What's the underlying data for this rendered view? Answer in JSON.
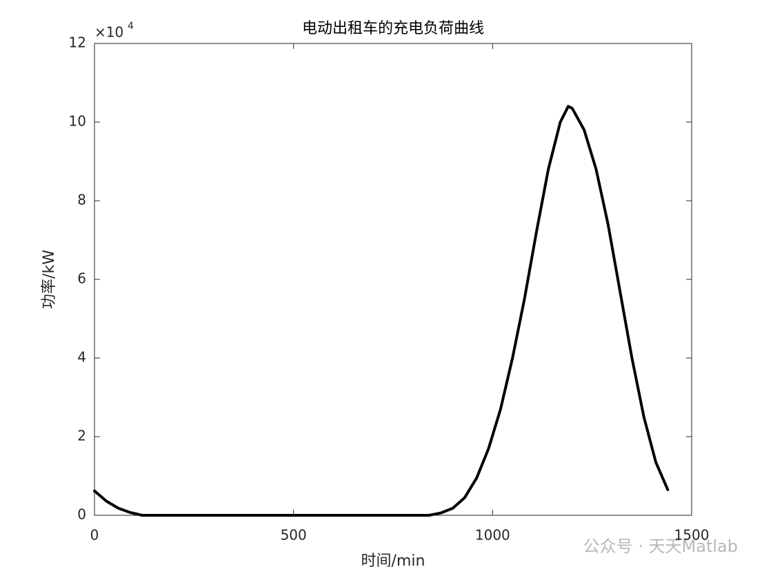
{
  "chart_data": {
    "type": "line",
    "title": "电动出租车的充电负荷曲线",
    "x_label": "时间/min",
    "y_label": "功率/kW",
    "y_scale_label": "×10",
    "y_scale_exponent": 4,
    "watermark": "公众号 · 天天Matlab",
    "x": [
      0,
      30,
      60,
      90,
      120,
      150,
      180,
      210,
      240,
      270,
      300,
      330,
      360,
      390,
      420,
      450,
      480,
      510,
      540,
      570,
      600,
      630,
      660,
      690,
      720,
      750,
      780,
      810,
      840,
      870,
      900,
      930,
      960,
      990,
      1020,
      1050,
      1080,
      1110,
      1140,
      1170,
      1190,
      1200,
      1230,
      1260,
      1290,
      1320,
      1350,
      1380,
      1410,
      1440
    ],
    "series": [
      {
        "color": "#000000",
        "values": [
          6200,
          3600,
          1800,
          700,
          0,
          0,
          0,
          0,
          0,
          0,
          0,
          0,
          0,
          0,
          0,
          0,
          0,
          0,
          0,
          0,
          0,
          0,
          0,
          0,
          0,
          0,
          0,
          0,
          0,
          600,
          1800,
          4500,
          9500,
          17000,
          27000,
          40000,
          55000,
          72000,
          88000,
          100000,
          104000,
          103500,
          98000,
          88000,
          74000,
          57000,
          40000,
          25000,
          13500,
          6500
        ]
      }
    ],
    "xlim": [
      0,
      1500
    ],
    "xticks": [
      0,
      500,
      1000,
      1500
    ],
    "ylim": [
      0,
      120000
    ],
    "yticks": [
      {
        "value": 0,
        "label": "0"
      },
      {
        "value": 20000,
        "label": "2"
      },
      {
        "value": 40000,
        "label": "4"
      },
      {
        "value": 60000,
        "label": "6"
      },
      {
        "value": 80000,
        "label": "8"
      },
      {
        "value": 100000,
        "label": "10"
      },
      {
        "value": 120000,
        "label": "12"
      }
    ]
  }
}
